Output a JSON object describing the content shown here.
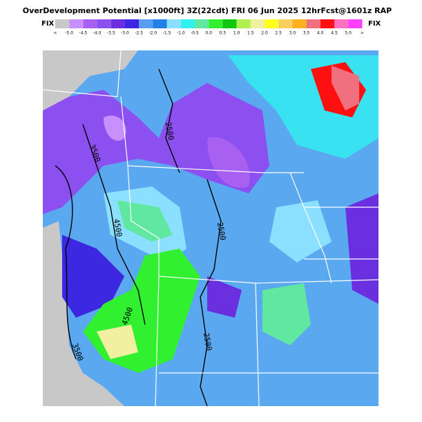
{
  "title": "OverDevelopment Potential [x1000ft] 3Z(22cdt) FRI 06 Jun 2025 12hrFcst@1601z RAP",
  "fix_left": "FIX",
  "fix_right": "FIX",
  "legend": {
    "labels": [
      "<",
      "-5.0",
      "-4.5",
      "-4.0",
      "-3.5",
      "-3.0",
      "-2.5",
      "-2.0",
      "-1.5",
      "-1.0",
      "-0.5",
      "0.0",
      "0.5",
      "1.0",
      "1.5",
      "2.0",
      "2.5",
      "3.0",
      "3.5",
      "4.0",
      "4.5",
      "5.0",
      ">"
    ],
    "colors": [
      "#c8c8c8",
      "#c890ff",
      "#a860f0",
      "#8c50f0",
      "#6a30e0",
      "#3c28e0",
      "#5a9cf0",
      "#2080e8",
      "#8ce0ff",
      "#30f0f0",
      "#60e8a0",
      "#30f030",
      "#10c810",
      "#b0f050",
      "#f0f0a0",
      "#ffff20",
      "#f8d060",
      "#ffb020",
      "#f07080",
      "#ff1010",
      "#ff70c0",
      "#ff40ff"
    ]
  },
  "contour_labels": [
    "2500",
    "3500",
    "4500",
    "2500",
    "4500",
    "2500",
    "3500"
  ]
}
